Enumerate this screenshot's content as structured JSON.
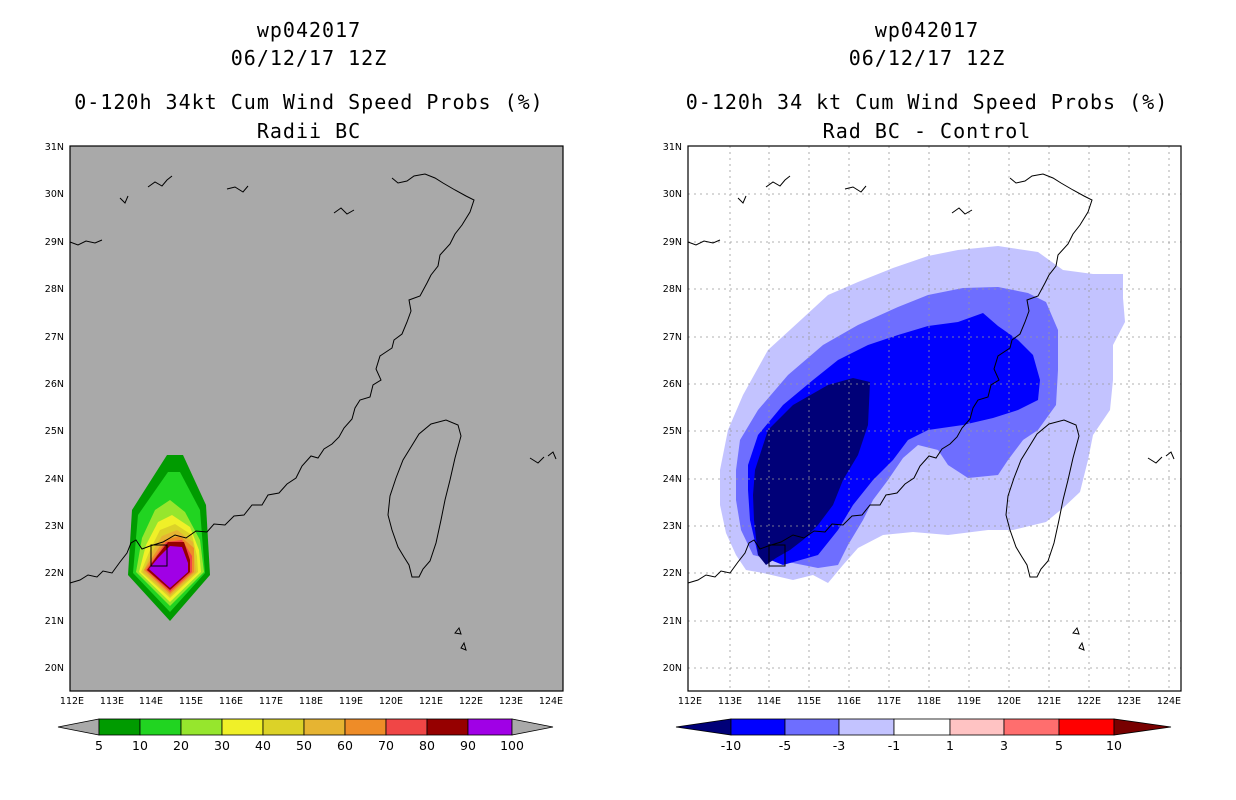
{
  "left_panel": {
    "title_line1": "wp042017",
    "title_line2": "06/12/17 12Z",
    "title_line3": "0-120h 34kt Cum Wind Speed Probs (%)",
    "title_line4": "Radii BC",
    "background": "#a9a9a9",
    "colorbar": {
      "colors": [
        "#009b00",
        "#21d421",
        "#96e62d",
        "#f0f028",
        "#dcd228",
        "#e6b432",
        "#ee8c28",
        "#f04646",
        "#960000",
        "#a000e6"
      ],
      "end_left_color": "#a9a9a9",
      "end_right_color": "#a9a9a9",
      "labels": [
        "5",
        "10",
        "20",
        "30",
        "40",
        "50",
        "60",
        "70",
        "80",
        "90",
        "100"
      ]
    }
  },
  "right_panel": {
    "title_line1": "wp042017",
    "title_line2": "06/12/17 12Z",
    "title_line3": "0-120h 34 kt Cum Wind Speed Probs (%)",
    "title_line4": "Rad BC - Control",
    "background": "#ffffff",
    "colorbar": {
      "colors": [
        "#0000ff",
        "#6e6eff",
        "#c3c3ff",
        "#ffffff",
        "#ffc3c3",
        "#ff6e6e",
        "#ff0000"
      ],
      "end_left_color": "#000078",
      "end_right_color": "#780000",
      "labels": [
        "-10",
        "-5",
        "-3",
        "-1",
        "1",
        "3",
        "5",
        "10"
      ]
    }
  },
  "map": {
    "lon_labels": [
      "112E",
      "113E",
      "114E",
      "115E",
      "116E",
      "117E",
      "118E",
      "119E",
      "120E",
      "121E",
      "122E",
      "123E",
      "124E"
    ],
    "lat_labels": [
      "20N",
      "21N",
      "22N",
      "23N",
      "24N",
      "25N",
      "26N",
      "27N",
      "28N",
      "29N",
      "30N",
      "31N"
    ]
  }
}
